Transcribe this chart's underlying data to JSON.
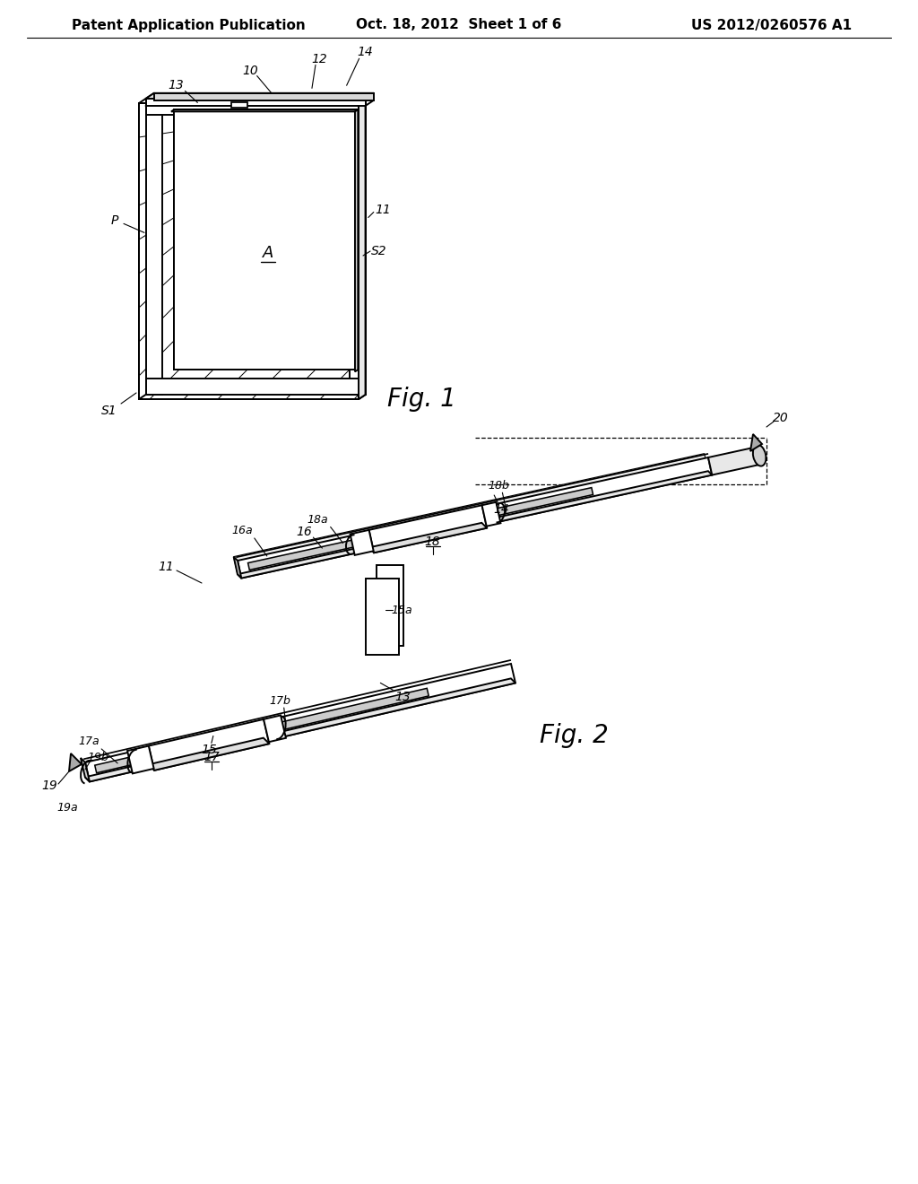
{
  "background_color": "#ffffff",
  "header_left": "Patent Application Publication",
  "header_center": "Oct. 18, 2012  Sheet 1 of 6",
  "header_right": "US 2012/0260576 A1",
  "header_fontsize": 11,
  "fig1_label": "Fig. 1",
  "fig2_label": "Fig. 2",
  "line_color": "#000000",
  "label_fontsize": 10,
  "fig_label_fontsize": 20
}
